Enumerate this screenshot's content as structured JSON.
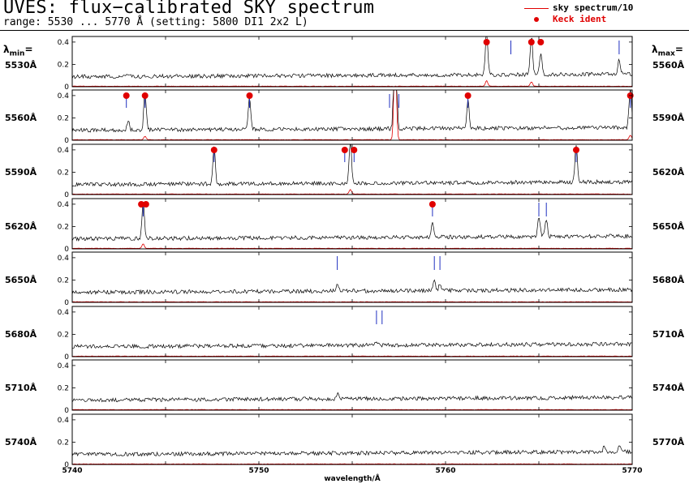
{
  "header": {
    "title": "UVES: flux−calibrated SKY spectrum",
    "subtitle": "range: 5530 ... 5770 Å (setting: 5800 DI1 2x2 L)"
  },
  "legend": {
    "sky_label": "sky spectrum/10",
    "keck_label": "Keck ident"
  },
  "side_labels": {
    "min_head": "min",
    "max_head": "max",
    "lambda": "λ",
    "eq": "="
  },
  "colors": {
    "spectrum": "#000000",
    "sky": "#e00000",
    "keck": "#e00000",
    "ident": "#2030c0"
  },
  "chart_data": {
    "type": "line",
    "xlabel": "wavelength/Å",
    "x_ticks": [
      "5740",
      "5750",
      "5760",
      "5770"
    ],
    "y_ticks": [
      "0",
      "0.2",
      "0.4"
    ],
    "ylim": [
      0,
      0.45
    ],
    "continuum_level": 0.09,
    "grid": false,
    "legend_position": "top-right",
    "panels": [
      {
        "lmin": "5530Å",
        "lmax": "5560Å",
        "start": 5530,
        "lines": [
          {
            "w": 5552.2,
            "p": 0.38
          },
          {
            "w": 5554.6,
            "p": 0.35
          },
          {
            "w": 5555.1,
            "p": 0.2
          },
          {
            "w": 5559.3,
            "p": 0.14
          }
        ],
        "keck": [
          5552.2,
          5554.6,
          5555.1
        ],
        "ident": [
          5553.5,
          5559.3
        ],
        "sky_peaks": [
          {
            "w": 5552.2,
            "p": 0.05
          },
          {
            "w": 5554.6,
            "p": 0.04
          }
        ]
      },
      {
        "lmin": "5560Å",
        "lmax": "5590Å",
        "start": 5560,
        "lines": [
          {
            "w": 5563.9,
            "p": 0.35
          },
          {
            "w": 5569.5,
            "p": 0.28
          },
          {
            "w": 5577.3,
            "p": 1.5
          },
          {
            "w": 5581.2,
            "p": 0.25
          },
          {
            "w": 5589.9,
            "p": 0.36
          },
          {
            "w": 5563.0,
            "p": 0.08
          }
        ],
        "keck": [
          5562.9,
          5563.9,
          5569.5,
          5581.2,
          5589.9
        ],
        "ident": [
          5562.9,
          5563.9,
          5569.5,
          5577.0,
          5577.5,
          5581.2,
          5589.9
        ],
        "sky_peaks": [
          {
            "w": 5577.3,
            "p": 0.9
          },
          {
            "w": 5563.9,
            "p": 0.03
          },
          {
            "w": 5589.9,
            "p": 0.04
          }
        ]
      },
      {
        "lmin": "5590Å",
        "lmax": "5620Å",
        "start": 5590,
        "lines": [
          {
            "w": 5597.6,
            "p": 0.33
          },
          {
            "w": 5604.9,
            "p": 0.38
          },
          {
            "w": 5617.0,
            "p": 0.33
          }
        ],
        "keck": [
          5597.6,
          5604.6,
          5605.1,
          5617.0
        ],
        "ident": [
          5597.6,
          5604.6,
          5605.1,
          5617.0
        ],
        "sky_peaks": [
          {
            "w": 5604.9,
            "p": 0.04
          }
        ]
      },
      {
        "lmin": "5620Å",
        "lmax": "5650Å",
        "start": 5620,
        "lines": [
          {
            "w": 5623.8,
            "p": 0.33
          },
          {
            "w": 5639.3,
            "p": 0.15
          },
          {
            "w": 5645.0,
            "p": 0.18
          },
          {
            "w": 5645.4,
            "p": 0.16
          }
        ],
        "keck": [
          5623.7,
          5623.95,
          5639.3
        ],
        "ident": [
          5623.8,
          5639.3,
          5645.0,
          5645.4
        ],
        "sky_peaks": [
          {
            "w": 5623.8,
            "p": 0.04
          }
        ]
      },
      {
        "lmin": "5650Å",
        "lmax": "5680Å",
        "start": 5650,
        "lines": [
          {
            "w": 5664.2,
            "p": 0.06
          },
          {
            "w": 5669.4,
            "p": 0.08
          },
          {
            "w": 5669.7,
            "p": 0.06
          }
        ],
        "keck": [],
        "ident": [
          5664.2,
          5669.4,
          5669.7
        ],
        "sky_peaks": []
      },
      {
        "lmin": "5680Å",
        "lmax": "5710Å",
        "start": 5680,
        "lines": [
          {
            "w": 5696.3,
            "p": 0.03
          }
        ],
        "keck": [],
        "ident": [
          5696.3,
          5696.6
        ],
        "sky_peaks": []
      },
      {
        "lmin": "5710Å",
        "lmax": "5740Å",
        "start": 5710,
        "lines": [
          {
            "w": 5724.2,
            "p": 0.05
          }
        ],
        "keck": [],
        "ident": [],
        "sky_peaks": []
      },
      {
        "lmin": "5740Å",
        "lmax": "5770Å",
        "start": 5740,
        "lines": [
          {
            "w": 5768.5,
            "p": 0.05
          },
          {
            "w": 5769.3,
            "p": 0.06
          }
        ],
        "keck": [],
        "ident": [],
        "sky_peaks": []
      }
    ]
  }
}
